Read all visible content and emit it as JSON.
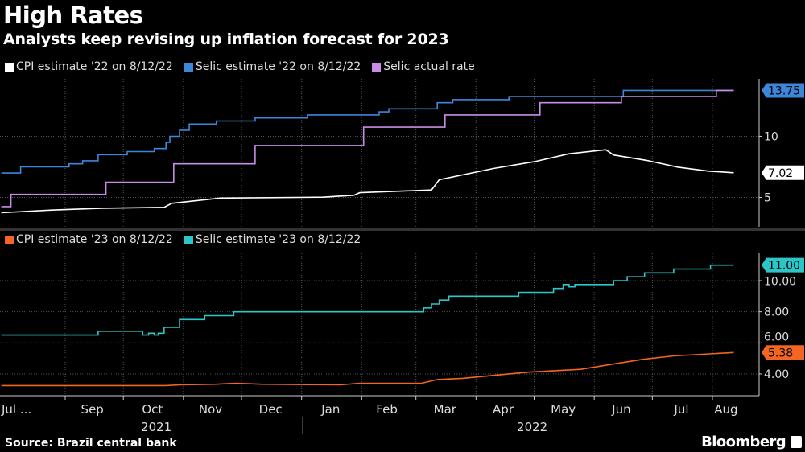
{
  "title": "High Rates",
  "subtitle": "Analysts keep revising up inflation forecast for 2023",
  "source": "Source: Brazil central bank",
  "brand": "Bloomberg",
  "chart_data": [
    {
      "type": "line",
      "panel": "top",
      "legend_placement": "top-left",
      "grid": true,
      "ylim": [
        2.6,
        14.7
      ],
      "yticks": [
        {
          "value": 5,
          "label": "5"
        },
        {
          "value": 10,
          "label": "10"
        }
      ],
      "series": [
        {
          "name": "CPI estimate '22 on 8/12/22",
          "color": "#ffffff",
          "step": false,
          "last_label": "7.02",
          "points": [
            [
              "2021-07-30",
              3.75
            ],
            [
              "2021-08-25",
              3.97
            ],
            [
              "2021-09-20",
              4.12
            ],
            [
              "2021-10-22",
              4.19
            ],
            [
              "2021-10-26",
              4.52
            ],
            [
              "2021-11-20",
              4.95
            ],
            [
              "2022-01-12",
              5.02
            ],
            [
              "2022-01-28",
              5.18
            ],
            [
              "2022-01-31",
              5.39
            ],
            [
              "2022-03-09",
              5.61
            ],
            [
              "2022-03-13",
              6.45
            ],
            [
              "2022-04-10",
              7.37
            ],
            [
              "2022-05-01",
              7.92
            ],
            [
              "2022-05-19",
              8.57
            ],
            [
              "2022-06-07",
              8.9
            ],
            [
              "2022-06-11",
              8.47
            ],
            [
              "2022-06-28",
              8.03
            ],
            [
              "2022-07-14",
              7.48
            ],
            [
              "2022-07-30",
              7.15
            ],
            [
              "2022-08-12",
              7.02
            ]
          ]
        },
        {
          "name": "Selic estimate '22 on 8/12/22",
          "color": "#3d86d9",
          "step": true,
          "last_label": "13.75",
          "points": [
            [
              "2021-07-30",
              7.0
            ],
            [
              "2021-08-09",
              7.5
            ],
            [
              "2021-09-03",
              7.75
            ],
            [
              "2021-09-10",
              8.0
            ],
            [
              "2021-09-18",
              8.5
            ],
            [
              "2021-10-03",
              8.75
            ],
            [
              "2021-10-17",
              9.0
            ],
            [
              "2021-10-23",
              9.5
            ],
            [
              "2021-10-25",
              10.0
            ],
            [
              "2021-10-30",
              10.5
            ],
            [
              "2021-11-04",
              11.0
            ],
            [
              "2021-11-18",
              11.25
            ],
            [
              "2021-12-08",
              11.5
            ],
            [
              "2022-01-04",
              11.75
            ],
            [
              "2022-02-10",
              12.0
            ],
            [
              "2022-02-15",
              12.25
            ],
            [
              "2022-03-12",
              12.75
            ],
            [
              "2022-03-20",
              13.0
            ],
            [
              "2022-04-18",
              13.25
            ],
            [
              "2022-06-16",
              13.75
            ],
            [
              "2022-08-12",
              13.75
            ]
          ]
        },
        {
          "name": "Selic actual rate",
          "color": "#c88de6",
          "step": true,
          "points": [
            [
              "2021-07-30",
              4.25
            ],
            [
              "2021-08-04",
              5.25
            ],
            [
              "2021-09-22",
              6.25
            ],
            [
              "2021-10-27",
              7.75
            ],
            [
              "2021-12-08",
              9.25
            ],
            [
              "2022-02-02",
              10.75
            ],
            [
              "2022-03-16",
              11.75
            ],
            [
              "2022-05-04",
              12.75
            ],
            [
              "2022-06-15",
              13.25
            ],
            [
              "2022-08-03",
              13.75
            ],
            [
              "2022-08-12",
              13.75
            ]
          ]
        }
      ]
    },
    {
      "type": "line",
      "panel": "bottom",
      "legend_placement": "top-left",
      "grid": true,
      "ylim": [
        2.6,
        11.76
      ],
      "yticks": [
        {
          "value": 4,
          "label": "4.00"
        },
        {
          "value": 6,
          "label": "6.00"
        },
        {
          "value": 8,
          "label": "8.00"
        },
        {
          "value": 10,
          "label": "10.00"
        }
      ],
      "series": [
        {
          "name": "CPI estimate '23 on 8/12/22",
          "color": "#f26522",
          "step": false,
          "last_label": "5.38",
          "points": [
            [
              "2021-07-30",
              3.25
            ],
            [
              "2021-10-23",
              3.25
            ],
            [
              "2021-10-30",
              3.3
            ],
            [
              "2021-11-18",
              3.34
            ],
            [
              "2021-11-28",
              3.4
            ],
            [
              "2021-12-11",
              3.34
            ],
            [
              "2022-01-21",
              3.3
            ],
            [
              "2022-01-31",
              3.4
            ],
            [
              "2022-03-04",
              3.4
            ],
            [
              "2022-03-12",
              3.64
            ],
            [
              "2022-03-25",
              3.72
            ],
            [
              "2022-04-18",
              4.0
            ],
            [
              "2022-04-29",
              4.12
            ],
            [
              "2022-05-25",
              4.3
            ],
            [
              "2022-06-13",
              4.68
            ],
            [
              "2022-06-26",
              4.94
            ],
            [
              "2022-07-12",
              5.16
            ],
            [
              "2022-08-12",
              5.38
            ]
          ]
        },
        {
          "name": "Selic estimate '23 on 8/12/22",
          "color": "#2cc5c8",
          "step": true,
          "last_label": "11.00",
          "points": [
            [
              "2021-07-30",
              6.5
            ],
            [
              "2021-09-18",
              6.75
            ],
            [
              "2021-10-09",
              6.75
            ],
            [
              "2021-10-11",
              6.5
            ],
            [
              "2021-10-14",
              6.62
            ],
            [
              "2021-10-17",
              6.5
            ],
            [
              "2021-10-19",
              6.62
            ],
            [
              "2021-10-22",
              7.0
            ],
            [
              "2021-10-30",
              7.5
            ],
            [
              "2021-11-12",
              7.75
            ],
            [
              "2021-11-27",
              8.0
            ],
            [
              "2022-03-05",
              8.25
            ],
            [
              "2022-03-09",
              8.5
            ],
            [
              "2022-03-13",
              8.75
            ],
            [
              "2022-03-18",
              9.0
            ],
            [
              "2022-04-23",
              9.25
            ],
            [
              "2022-05-11",
              9.5
            ],
            [
              "2022-05-16",
              9.75
            ],
            [
              "2022-05-19",
              9.6
            ],
            [
              "2022-05-22",
              9.75
            ],
            [
              "2022-06-11",
              10.0
            ],
            [
              "2022-06-18",
              10.25
            ],
            [
              "2022-06-27",
              10.5
            ],
            [
              "2022-07-12",
              10.75
            ],
            [
              "2022-07-31",
              11.0
            ],
            [
              "2022-08-12",
              11.0
            ]
          ]
        }
      ]
    }
  ],
  "xaxis": {
    "range": [
      "2021-07-30",
      "2022-08-20"
    ],
    "ticks": [
      {
        "date": "2021-08-01",
        "label": "Jul ..."
      },
      {
        "date": "2021-09-15",
        "label": "Sep"
      },
      {
        "date": "2021-10-16",
        "label": "Oct"
      },
      {
        "date": "2021-11-15",
        "label": "Nov"
      },
      {
        "date": "2021-12-16",
        "label": "Dec"
      },
      {
        "date": "2022-01-16",
        "label": "Jan"
      },
      {
        "date": "2022-02-14",
        "label": "Feb"
      },
      {
        "date": "2022-03-16",
        "label": "Mar"
      },
      {
        "date": "2022-04-15",
        "label": "Apr"
      },
      {
        "date": "2022-05-16",
        "label": "May"
      },
      {
        "date": "2022-06-15",
        "label": "Jun"
      },
      {
        "date": "2022-07-16",
        "label": "Jul"
      },
      {
        "date": "2022-08-08",
        "label": "Aug"
      }
    ],
    "gridlines": [
      "2021-09-01",
      "2021-10-01",
      "2021-11-01",
      "2021-12-01",
      "2022-01-01",
      "2022-02-01",
      "2022-03-01",
      "2022-04-01",
      "2022-05-01",
      "2022-06-01",
      "2022-07-01",
      "2022-08-01"
    ],
    "years": [
      {
        "date": "2021-10-18",
        "label": "2021"
      },
      {
        "date": "2022-04-30",
        "label": "2022"
      }
    ]
  }
}
